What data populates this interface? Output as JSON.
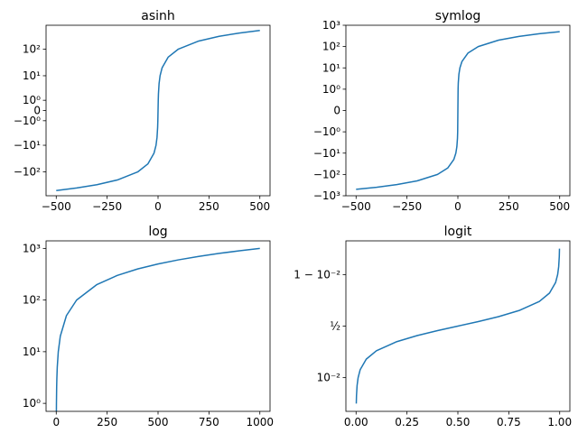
{
  "chart_data": [
    {
      "type": "line",
      "title": "asinh",
      "function": "y = x",
      "x": [
        -500,
        -400,
        -300,
        -200,
        -100,
        -50,
        -20,
        -10,
        -5,
        -2,
        -1,
        0,
        1,
        2,
        5,
        10,
        20,
        50,
        100,
        200,
        300,
        400,
        500
      ],
      "y": [
        -500,
        -400,
        -300,
        -200,
        -100,
        -50,
        -20,
        -10,
        -5,
        -2,
        -1,
        0,
        1,
        2,
        5,
        10,
        20,
        50,
        100,
        200,
        300,
        400,
        500
      ],
      "xlim": [
        -550,
        550
      ],
      "ylim": [
        -780,
        780
      ],
      "yscale": "asinh",
      "series_color": "#1f77b4",
      "xticks": [
        {
          "v": -500,
          "label": "−500"
        },
        {
          "v": -250,
          "label": "−250"
        },
        {
          "v": 0,
          "label": "0"
        },
        {
          "v": 250,
          "label": "250"
        },
        {
          "v": 500,
          "label": "500"
        }
      ],
      "yticks": [
        {
          "v": -100,
          "label": "−10²"
        },
        {
          "v": -10,
          "label": "−10¹"
        },
        {
          "v": -1,
          "label": "−10⁰"
        },
        {
          "v": 0,
          "label": "0"
        },
        {
          "v": 1,
          "label": "10⁰"
        },
        {
          "v": 10,
          "label": "10¹"
        },
        {
          "v": 100,
          "label": "10²"
        }
      ]
    },
    {
      "type": "line",
      "title": "symlog",
      "function": "y = x",
      "x": [
        -500,
        -400,
        -300,
        -200,
        -100,
        -50,
        -20,
        -10,
        -5,
        -2,
        -1,
        0,
        1,
        2,
        5,
        10,
        20,
        50,
        100,
        200,
        300,
        400,
        500
      ],
      "y": [
        -500,
        -400,
        -300,
        -200,
        -100,
        -50,
        -20,
        -10,
        -5,
        -2,
        -1,
        0,
        1,
        2,
        5,
        10,
        20,
        50,
        100,
        200,
        300,
        400,
        500
      ],
      "xlim": [
        -550,
        550
      ],
      "ylim": [
        -1000,
        1000
      ],
      "yscale": "symlog",
      "linthresh": 1,
      "series_color": "#1f77b4",
      "xticks": [
        {
          "v": -500,
          "label": "−500"
        },
        {
          "v": -250,
          "label": "−250"
        },
        {
          "v": 0,
          "label": "0"
        },
        {
          "v": 250,
          "label": "250"
        },
        {
          "v": 500,
          "label": "500"
        }
      ],
      "yticks": [
        {
          "v": -1000,
          "label": "−10³"
        },
        {
          "v": -100,
          "label": "−10²"
        },
        {
          "v": -10,
          "label": "−10¹"
        },
        {
          "v": -1,
          "label": "−10⁰"
        },
        {
          "v": 0,
          "label": "0"
        },
        {
          "v": 1,
          "label": "10⁰"
        },
        {
          "v": 10,
          "label": "10¹"
        },
        {
          "v": 100,
          "label": "10²"
        },
        {
          "v": 1000,
          "label": "10³"
        }
      ]
    },
    {
      "type": "line",
      "title": "log",
      "function": "y = x",
      "x": [
        0.7,
        1,
        2,
        3,
        5,
        10,
        20,
        50,
        100,
        200,
        300,
        400,
        500,
        600,
        700,
        800,
        900,
        1000
      ],
      "y": [
        0.7,
        1,
        2,
        3,
        5,
        10,
        20,
        50,
        100,
        200,
        300,
        400,
        500,
        600,
        700,
        800,
        900,
        1000
      ],
      "xlim": [
        -50,
        1050
      ],
      "ylim": [
        0.7,
        1400
      ],
      "yscale": "log",
      "series_color": "#1f77b4",
      "xticks": [
        {
          "v": 0,
          "label": "0"
        },
        {
          "v": 250,
          "label": "250"
        },
        {
          "v": 500,
          "label": "500"
        },
        {
          "v": 750,
          "label": "750"
        },
        {
          "v": 1000,
          "label": "1000"
        }
      ],
      "yticks": [
        {
          "v": 1,
          "label": "10⁰"
        },
        {
          "v": 10,
          "label": "10¹"
        },
        {
          "v": 100,
          "label": "10²"
        },
        {
          "v": 1000,
          "label": "10³"
        }
      ]
    },
    {
      "type": "line",
      "title": "logit",
      "function": "y = x",
      "x": [
        0.001,
        0.002,
        0.005,
        0.01,
        0.02,
        0.05,
        0.1,
        0.2,
        0.3,
        0.4,
        0.5,
        0.6,
        0.7,
        0.8,
        0.9,
        0.95,
        0.98,
        0.99,
        0.995,
        0.998,
        0.999
      ],
      "y": [
        0.001,
        0.002,
        0.005,
        0.01,
        0.02,
        0.05,
        0.1,
        0.2,
        0.3,
        0.4,
        0.5,
        0.6,
        0.7,
        0.8,
        0.9,
        0.95,
        0.98,
        0.99,
        0.995,
        0.998,
        0.999
      ],
      "xlim": [
        -0.05,
        1.05
      ],
      "ylim": [
        0.0005,
        0.9995
      ],
      "yscale": "logit",
      "series_color": "#1f77b4",
      "xticks": [
        {
          "v": 0,
          "label": "0.00"
        },
        {
          "v": 0.25,
          "label": "0.25"
        },
        {
          "v": 0.5,
          "label": "0.50"
        },
        {
          "v": 0.75,
          "label": "0.75"
        },
        {
          "v": 1,
          "label": "1.00"
        }
      ],
      "yticks": [
        {
          "v": 0.01,
          "label": "10⁻²"
        },
        {
          "v": 0.5,
          "label": "½"
        },
        {
          "v": 0.99,
          "label": "1 − 10⁻²"
        }
      ]
    }
  ]
}
